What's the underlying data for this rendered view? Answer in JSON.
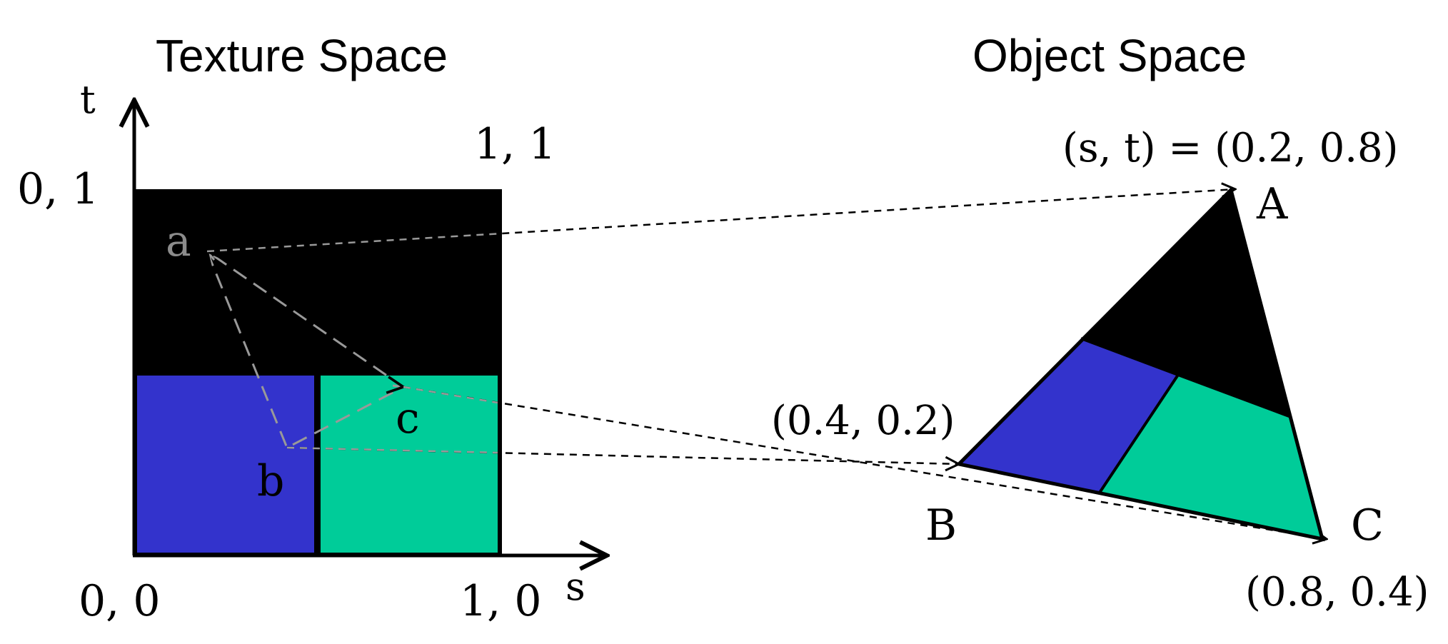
{
  "titles": {
    "texture_space": "Texture Space",
    "object_space": "Object Space"
  },
  "texture": {
    "axis_t": "t",
    "axis_s": "s",
    "corner_00": "0, 0",
    "corner_01": "0, 1",
    "corner_10": "1, 0",
    "corner_11": "1, 1",
    "point_a": "a",
    "point_b": "b",
    "point_c": "c"
  },
  "object": {
    "vertex_A": "A",
    "vertex_B": "B",
    "vertex_C": "C",
    "coord_A": "(s, t) = (0.2, 0.8)",
    "coord_B": "(0.4, 0.2)",
    "coord_C": "(0.8, 0.4)"
  },
  "colors": {
    "black": "#000000",
    "blue": "#3333cc",
    "green": "#00cc99",
    "gray_point": "#8c8c8c",
    "dash_gray": "#999999"
  }
}
